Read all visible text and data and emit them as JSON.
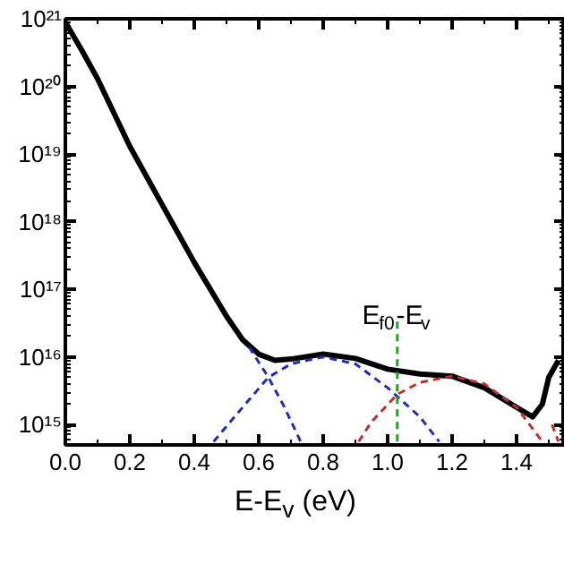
{
  "chart_data": {
    "type": "line",
    "xlabel": "E-E$_{v}$ (eV)",
    "log": "y",
    "grid": false,
    "xlim": [
      0,
      1.55
    ],
    "ylim": [
      500000000000000.0,
      1e+21
    ],
    "xticks": [
      {
        "value": 0,
        "label": "0.0"
      },
      {
        "value": 0.2,
        "label": "0.2"
      },
      {
        "value": 0.4,
        "label": "0.4"
      },
      {
        "value": 0.6,
        "label": "0.6"
      },
      {
        "value": 0.8,
        "label": "0.8"
      },
      {
        "value": 1.0,
        "label": "1.0"
      },
      {
        "value": 1.2,
        "label": "1.2"
      },
      {
        "value": 1.4,
        "label": "1.4"
      }
    ],
    "yticks": [
      {
        "value": 1000000000000000.0,
        "label": "10¹⁵"
      },
      {
        "value": 1e+16,
        "label": "10¹⁶"
      },
      {
        "value": 1e+17,
        "label": "10¹⁷"
      },
      {
        "value": 1e+18,
        "label": "10¹⁸"
      },
      {
        "value": 1e+19,
        "label": "10¹⁹"
      },
      {
        "value": 1e+20,
        "label": "10²⁰"
      },
      {
        "value": 1e+21,
        "label": "10²¹"
      }
    ],
    "annotations": [
      {
        "text": "E$_{f0}$-E$_{v}$",
        "x": 1.03,
        "y": 4e+16
      }
    ],
    "series": [
      {
        "color": "#000000",
        "line_style": "solid",
        "x": [
          0,
          0.05,
          0.1,
          0.2,
          0.3,
          0.4,
          0.5,
          0.55,
          0.6,
          0.65,
          0.7,
          0.8,
          0.9,
          1.0,
          1.1,
          1.2,
          1.3,
          1.4,
          1.45,
          1.48,
          1.5,
          1.53
        ],
        "values": [
          8.9e+20,
          3.5e+20,
          1.3e+20,
          1.3e+19,
          1.8e+18,
          2.5e+17,
          4e+16,
          1.8e+16,
          1.1e+16,
          8900000000000000.0,
          9300000000000000.0,
          1.1e+16,
          9500000000000000.0,
          6600000000000000.0,
          5600000000000000.0,
          5200000000000000.0,
          3500000000000000.0,
          1800000000000000.0,
          1300000000000000.0,
          2000000000000000.0,
          5000000000000000.0,
          8900000000000000.0
        ]
      },
      {
        "color": "#1f2fb0",
        "line_style": "dashed",
        "x": [
          0.57,
          0.63,
          0.68,
          0.73
        ],
        "values": [
          1.4e+16,
          5000000000000000.0,
          1800000000000000.0,
          560000000000000.0
        ]
      },
      {
        "color": "#1f2fb0",
        "line_style": "dashed",
        "x": [
          0.46,
          0.55,
          0.63,
          0.7,
          0.8,
          0.9,
          1.0,
          1.1,
          1.16
        ],
        "values": [
          560000000000000.0,
          1800000000000000.0,
          5000000000000000.0,
          7900000000000000.0,
          1e+16,
          7900000000000000.0,
          3500000000000000.0,
          1300000000000000.0,
          560000000000000.0
        ]
      },
      {
        "color": "#c0302a",
        "line_style": "dashed",
        "x": [
          0.91,
          0.95,
          1.03,
          1.1,
          1.2,
          1.3,
          1.4,
          1.48
        ],
        "values": [
          560000000000000.0,
          1100000000000000.0,
          2800000000000000.0,
          4200000000000000.0,
          5200000000000000.0,
          4000000000000000.0,
          1800000000000000.0,
          560000000000000.0
        ]
      },
      {
        "color": "#c0302a",
        "line_style": "dashed",
        "x": [
          1.51,
          1.53
        ],
        "values": [
          1000000000000000.0,
          560000000000000.0
        ]
      },
      {
        "color": "#2a9a2a",
        "line_style": "dashed",
        "x": [
          1.03,
          1.03
        ],
        "values": [
          560000000000000.0,
          4e+16
        ]
      }
    ]
  }
}
